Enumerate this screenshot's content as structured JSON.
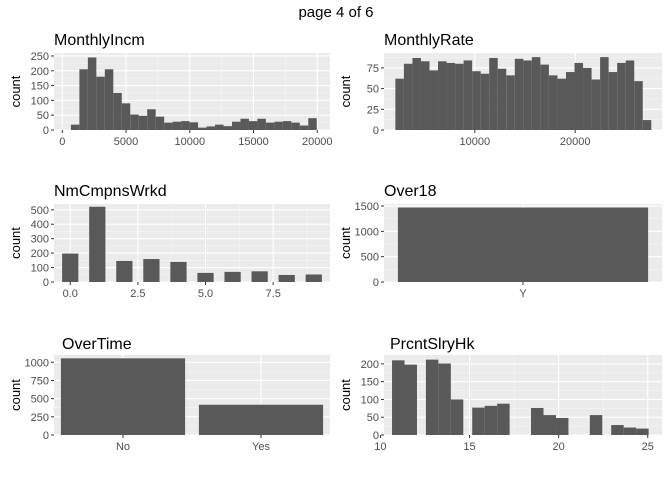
{
  "page_title": "page 4 of 6",
  "colors": {
    "panel_bg": "#ebebeb",
    "grid_major": "#ffffff",
    "grid_minor": "#f5f5f5",
    "bar": "#595959",
    "tick_text": "#4d4d4d"
  },
  "chart_data": [
    {
      "type": "bar",
      "title": "MonthlyIncm",
      "ylabel": "count",
      "xlim": [
        -650,
        21000
      ],
      "ylim": [
        0,
        260
      ],
      "xticks": [
        0,
        5000,
        10000,
        15000,
        20000
      ],
      "xtick_labels": [
        "0",
        "5000",
        "10000",
        "15000",
        "20000"
      ],
      "yticks": [
        0,
        50,
        100,
        150,
        200,
        250
      ],
      "ytick_labels": [
        "0",
        "50",
        "100",
        "150",
        "200",
        "250"
      ],
      "bin_width": 665,
      "x": [
        1009,
        1674,
        2339,
        3004,
        3669,
        4334,
        4999,
        5664,
        6329,
        6994,
        7659,
        8324,
        8989,
        9654,
        10319,
        10984,
        11649,
        12314,
        12979,
        13644,
        14309,
        14974,
        15639,
        16304,
        16969,
        17634,
        18299,
        18964,
        19629
      ],
      "values": [
        18,
        205,
        245,
        180,
        205,
        125,
        90,
        52,
        48,
        70,
        45,
        25,
        28,
        30,
        26,
        8,
        12,
        18,
        13,
        28,
        38,
        30,
        38,
        25,
        28,
        30,
        25,
        15,
        40
      ]
    },
    {
      "type": "bar",
      "title": "MonthlyRate",
      "ylabel": "count",
      "xlim": [
        950,
        28650
      ],
      "ylim": [
        0,
        93
      ],
      "xticks": [
        10000,
        20000
      ],
      "xtick_labels": [
        "10000",
        "20000"
      ],
      "yticks": [
        0,
        25,
        50,
        75
      ],
      "ytick_labels": [
        "0",
        "25",
        "50",
        "75"
      ],
      "bin_width": 850,
      "x": [
        2508,
        3358,
        4208,
        5058,
        5908,
        6758,
        7608,
        8458,
        9308,
        10158,
        11008,
        11858,
        12708,
        13558,
        14408,
        15258,
        16108,
        16958,
        17808,
        18658,
        19508,
        20358,
        21208,
        22058,
        22908,
        23758,
        24608,
        25458,
        26308,
        27158
      ],
      "values": [
        62,
        80,
        87,
        83,
        72,
        83,
        81,
        80,
        84,
        71,
        68,
        87,
        74,
        66,
        86,
        84,
        88,
        79,
        66,
        62,
        70,
        81,
        75,
        61,
        88,
        70,
        81,
        84,
        59,
        12
      ]
    },
    {
      "type": "bar",
      "title": "NmCmpnsWrkd",
      "ylabel": "count",
      "xlim": [
        -0.6,
        9.6
      ],
      "ylim": [
        0,
        540
      ],
      "xticks": [
        0,
        2.5,
        5,
        7.5
      ],
      "xtick_labels": [
        "0.0",
        "2.5",
        "5.0",
        "7.5"
      ],
      "yticks": [
        0,
        100,
        200,
        300,
        400,
        500
      ],
      "ytick_labels": [
        "0",
        "100",
        "200",
        "300",
        "400",
        "500"
      ],
      "bin_width": 0.6,
      "x": [
        0,
        1,
        2,
        3,
        4,
        5,
        6,
        7,
        8,
        9
      ],
      "values": [
        197,
        521,
        146,
        159,
        139,
        63,
        70,
        74,
        49,
        52
      ]
    },
    {
      "type": "bar",
      "title": "Over18",
      "ylabel": "count",
      "categories": [
        "Y"
      ],
      "values": [
        1470
      ],
      "ylim": [
        0,
        1540
      ],
      "yticks": [
        0,
        500,
        1000,
        1500
      ],
      "ytick_labels": [
        "0",
        "500",
        "1000",
        "1500"
      ]
    },
    {
      "type": "bar",
      "title": "OverTime",
      "ylabel": "count",
      "categories": [
        "No",
        "Yes"
      ],
      "values": [
        1054,
        416
      ],
      "ylim": [
        0,
        1100
      ],
      "yticks": [
        0,
        250,
        500,
        750,
        1000
      ],
      "ytick_labels": [
        "0",
        "250",
        "500",
        "750",
        "1000"
      ]
    },
    {
      "type": "bar",
      "title": "PrcntSlryHk",
      "ylabel": "count",
      "xlim": [
        10.2,
        25.8
      ],
      "ylim": [
        0,
        225
      ],
      "xticks": [
        10,
        15,
        20,
        25
      ],
      "xtick_labels": [
        "10",
        "15",
        "20",
        "25"
      ],
      "yticks": [
        0,
        50,
        100,
        150,
        200
      ],
      "ytick_labels": [
        "0",
        "50",
        "100",
        "150",
        "200"
      ],
      "bin_width": 0.7,
      "x": [
        11,
        11.7,
        12.9,
        13.6,
        14.3,
        15.5,
        16.2,
        16.9,
        18.1,
        18.8,
        19.5,
        20.2,
        21.4,
        22.1,
        23.3,
        24,
        24.7
      ],
      "values": [
        210,
        198,
        212,
        201,
        100,
        77,
        82,
        88,
        0,
        76,
        56,
        48,
        0,
        56,
        28,
        21,
        18
      ]
    }
  ]
}
